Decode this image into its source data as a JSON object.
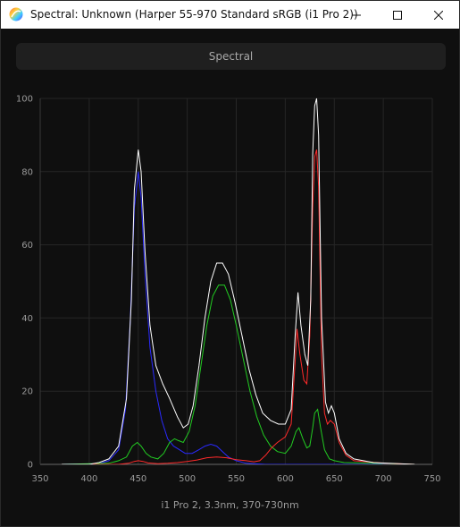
{
  "window": {
    "title": "Spectral: Unknown (Harper 55-970 Standard sRGB (i1 Pro 2))",
    "controls": {
      "minimize_icon": "minimize-icon",
      "maximize_icon": "maximize-icon",
      "close_icon": "close-icon"
    }
  },
  "toolbar": {
    "spectral_label": "Spectral"
  },
  "footer": {
    "caption": "i1 Pro 2, 3.3nm, 370-730nm"
  },
  "chart_data": {
    "type": "line",
    "xlim": [
      350,
      750
    ],
    "ylim": [
      0,
      100
    ],
    "x_ticks": [
      "350",
      "400",
      "450",
      "500",
      "550",
      "600",
      "650",
      "700",
      "750"
    ],
    "y_ticks": [
      "0",
      "20",
      "40",
      "60",
      "80",
      "100"
    ],
    "grid": true,
    "colors": {
      "total": "#ffffff",
      "red": "#ff2a2a",
      "green": "#22cc22",
      "blue": "#2a2aff"
    },
    "series": [
      {
        "key": "total",
        "points": [
          [
            372,
            0
          ],
          [
            400,
            0
          ],
          [
            410,
            0.5
          ],
          [
            420,
            1.5
          ],
          [
            430,
            5
          ],
          [
            438,
            18
          ],
          [
            443,
            45
          ],
          [
            446,
            75
          ],
          [
            450,
            86
          ],
          [
            453,
            80
          ],
          [
            457,
            58
          ],
          [
            462,
            38
          ],
          [
            468,
            27
          ],
          [
            475,
            22
          ],
          [
            482,
            18
          ],
          [
            490,
            13
          ],
          [
            496,
            10
          ],
          [
            501,
            11
          ],
          [
            506,
            16
          ],
          [
            512,
            27
          ],
          [
            518,
            40
          ],
          [
            524,
            50
          ],
          [
            530,
            55
          ],
          [
            536,
            55
          ],
          [
            542,
            52
          ],
          [
            549,
            44
          ],
          [
            556,
            35
          ],
          [
            563,
            26
          ],
          [
            570,
            19
          ],
          [
            577,
            14
          ],
          [
            585,
            12
          ],
          [
            593,
            11
          ],
          [
            600,
            11
          ],
          [
            606,
            15
          ],
          [
            610,
            35
          ],
          [
            613,
            47
          ],
          [
            616,
            38
          ],
          [
            620,
            30
          ],
          [
            623,
            27
          ],
          [
            626,
            45
          ],
          [
            628,
            85
          ],
          [
            630,
            98
          ],
          [
            632,
            100
          ],
          [
            634,
            90
          ],
          [
            637,
            40
          ],
          [
            641,
            17
          ],
          [
            644,
            14
          ],
          [
            647,
            16
          ],
          [
            650,
            14
          ],
          [
            655,
            7
          ],
          [
            662,
            3
          ],
          [
            670,
            1.5
          ],
          [
            690,
            0.5
          ],
          [
            732,
            0
          ]
        ]
      },
      {
        "key": "blue",
        "points": [
          [
            372,
            0
          ],
          [
            410,
            0.2
          ],
          [
            420,
            1
          ],
          [
            430,
            4
          ],
          [
            437,
            15
          ],
          [
            442,
            40
          ],
          [
            446,
            70
          ],
          [
            450,
            80
          ],
          [
            453,
            73
          ],
          [
            457,
            52
          ],
          [
            462,
            32
          ],
          [
            468,
            20
          ],
          [
            474,
            12
          ],
          [
            480,
            7
          ],
          [
            486,
            5
          ],
          [
            492,
            4
          ],
          [
            498,
            3
          ],
          [
            505,
            3
          ],
          [
            512,
            4
          ],
          [
            518,
            5
          ],
          [
            524,
            5.5
          ],
          [
            530,
            5
          ],
          [
            536,
            3.5
          ],
          [
            542,
            2
          ],
          [
            550,
            1
          ],
          [
            560,
            0.3
          ],
          [
            580,
            0
          ],
          [
            732,
            0
          ]
        ]
      },
      {
        "key": "green",
        "points": [
          [
            372,
            0
          ],
          [
            420,
            0.3
          ],
          [
            430,
            1
          ],
          [
            438,
            2
          ],
          [
            444,
            5
          ],
          [
            449,
            6
          ],
          [
            453,
            5
          ],
          [
            458,
            3
          ],
          [
            463,
            2
          ],
          [
            470,
            1.5
          ],
          [
            476,
            3
          ],
          [
            482,
            6
          ],
          [
            487,
            7
          ],
          [
            491,
            6.5
          ],
          [
            496,
            6
          ],
          [
            502,
            9
          ],
          [
            508,
            16
          ],
          [
            514,
            27
          ],
          [
            520,
            38
          ],
          [
            526,
            46
          ],
          [
            532,
            49
          ],
          [
            538,
            49
          ],
          [
            544,
            45
          ],
          [
            550,
            38
          ],
          [
            557,
            29
          ],
          [
            564,
            20
          ],
          [
            571,
            13
          ],
          [
            578,
            8
          ],
          [
            585,
            5
          ],
          [
            592,
            3.5
          ],
          [
            600,
            3
          ],
          [
            606,
            5
          ],
          [
            611,
            9
          ],
          [
            614,
            10
          ],
          [
            618,
            7
          ],
          [
            622,
            4.5
          ],
          [
            625,
            5
          ],
          [
            628,
            10
          ],
          [
            630,
            14
          ],
          [
            633,
            15
          ],
          [
            636,
            10
          ],
          [
            640,
            4
          ],
          [
            645,
            1.5
          ],
          [
            650,
            1
          ],
          [
            660,
            0.5
          ],
          [
            732,
            0
          ]
        ]
      },
      {
        "key": "red",
        "points": [
          [
            372,
            0
          ],
          [
            430,
            0
          ],
          [
            440,
            0.3
          ],
          [
            446,
            0.8
          ],
          [
            450,
            1
          ],
          [
            455,
            0.8
          ],
          [
            460,
            0.4
          ],
          [
            470,
            0.2
          ],
          [
            480,
            0.3
          ],
          [
            490,
            0.5
          ],
          [
            500,
            0.8
          ],
          [
            510,
            1.2
          ],
          [
            520,
            1.8
          ],
          [
            530,
            2
          ],
          [
            540,
            1.8
          ],
          [
            550,
            1.3
          ],
          [
            560,
            1
          ],
          [
            568,
            0.7
          ],
          [
            574,
            1
          ],
          [
            580,
            2.5
          ],
          [
            586,
            4.5
          ],
          [
            592,
            6
          ],
          [
            600,
            7.5
          ],
          [
            606,
            11
          ],
          [
            610,
            28
          ],
          [
            612,
            37
          ],
          [
            615,
            30
          ],
          [
            619,
            23
          ],
          [
            622,
            22
          ],
          [
            625,
            35
          ],
          [
            628,
            70
          ],
          [
            630,
            84
          ],
          [
            632,
            86
          ],
          [
            634,
            76
          ],
          [
            637,
            30
          ],
          [
            640,
            14
          ],
          [
            643,
            11
          ],
          [
            646,
            12
          ],
          [
            650,
            11
          ],
          [
            655,
            6
          ],
          [
            662,
            2.5
          ],
          [
            670,
            1
          ],
          [
            700,
            0.3
          ],
          [
            732,
            0
          ]
        ]
      }
    ]
  }
}
